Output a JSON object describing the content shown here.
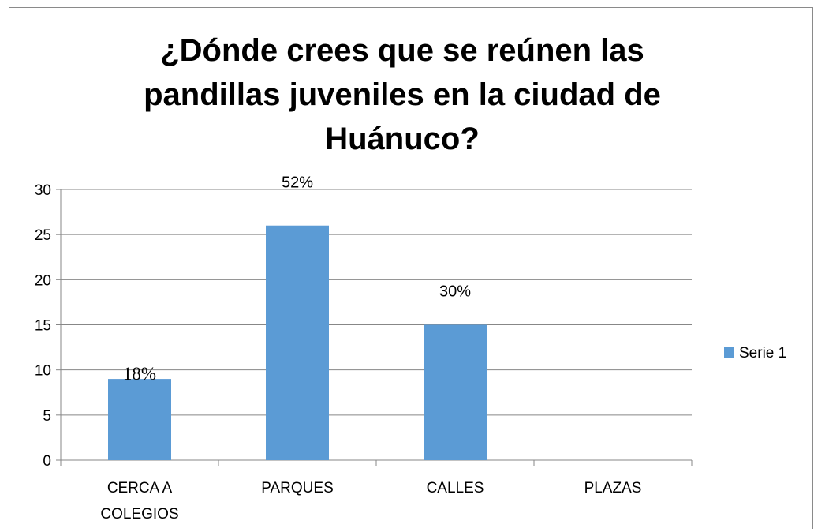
{
  "chart_data": {
    "type": "bar",
    "title": "¿Dónde crees que se reúnen las pandillas juveniles en la ciudad de Huánuco?",
    "categories": [
      "CERCA A COLEGIOS",
      "PARQUES",
      "CALLES",
      "PLAZAS"
    ],
    "series": [
      {
        "name": "Serie 1",
        "values": [
          9,
          26,
          15,
          0
        ],
        "color": "#5B9BD5"
      }
    ],
    "data_labels": [
      "18%",
      "52%",
      "30%",
      ""
    ],
    "ylim": [
      0,
      30
    ],
    "yticks": [
      0,
      5,
      10,
      15,
      20,
      25,
      30
    ],
    "grid": true,
    "legend": "right",
    "xlabel": "",
    "ylabel": ""
  }
}
